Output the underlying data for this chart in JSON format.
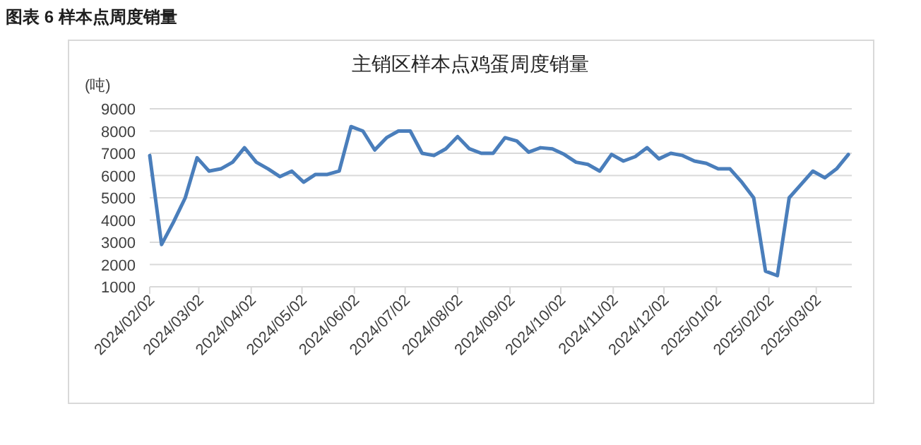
{
  "chart_data": {
    "type": "line",
    "title": "主销区样本点鸡蛋周度销量",
    "ylabel": "(吨)",
    "annotations": [
      "图表 6 样本点周度销量"
    ],
    "x": [
      "2024-02-02",
      "2024-02-09",
      "2024-02-16",
      "2024-02-23",
      "2024-03-01",
      "2024-03-08",
      "2024-03-15",
      "2024-03-22",
      "2024-03-29",
      "2024-04-05",
      "2024-04-12",
      "2024-04-19",
      "2024-04-26",
      "2024-05-03",
      "2024-05-10",
      "2024-05-17",
      "2024-05-24",
      "2024-05-31",
      "2024-06-07",
      "2024-06-14",
      "2024-06-21",
      "2024-06-28",
      "2024-07-05",
      "2024-07-12",
      "2024-07-19",
      "2024-07-26",
      "2024-08-02",
      "2024-08-09",
      "2024-08-16",
      "2024-08-23",
      "2024-08-30",
      "2024-09-06",
      "2024-09-13",
      "2024-09-20",
      "2024-09-27",
      "2024-10-04",
      "2024-10-11",
      "2024-10-18",
      "2024-10-25",
      "2024-11-01",
      "2024-11-08",
      "2024-11-15",
      "2024-11-22",
      "2024-11-29",
      "2024-12-06",
      "2024-12-13",
      "2024-12-20",
      "2024-12-27",
      "2025-01-03",
      "2025-01-10",
      "2025-01-17",
      "2025-01-24",
      "2025-01-31",
      "2025-02-07",
      "2025-02-14",
      "2025-02-21",
      "2025-02-28",
      "2025-03-07",
      "2025-03-14",
      "2025-03-21"
    ],
    "values": [
      6900,
      2900,
      3900,
      5000,
      6800,
      6200,
      6300,
      6600,
      7250,
      6600,
      6300,
      5950,
      6200,
      5700,
      6050,
      6050,
      6200,
      8200,
      8000,
      7150,
      7700,
      8000,
      8000,
      7000,
      6900,
      7200,
      7750,
      7200,
      7000,
      7000,
      7700,
      7550,
      7050,
      7250,
      7200,
      6950,
      6600,
      6500,
      6200,
      6950,
      6650,
      6850,
      7250,
      6750,
      7000,
      6900,
      6650,
      6550,
      6300,
      6300,
      5700,
      5000,
      1700,
      1500,
      5000,
      5600,
      6200,
      5900,
      6300,
      6950
    ],
    "color": "#4a7ebb",
    "marker": "none",
    "line_style": "solid",
    "grid": "y",
    "xlim": [
      "2024-02-02",
      "2025-03-23"
    ],
    "ylim": [
      1000,
      9000
    ],
    "yticks": [
      1000,
      2000,
      3000,
      4000,
      5000,
      6000,
      7000,
      8000,
      9000
    ],
    "xticks": [
      {
        "value": "2024-02-02",
        "label": "2024/02/02"
      },
      {
        "value": "2024-03-02",
        "label": "2024/03/02"
      },
      {
        "value": "2024-04-02",
        "label": "2024/04/02"
      },
      {
        "value": "2024-05-02",
        "label": "2024/05/02"
      },
      {
        "value": "2024-06-02",
        "label": "2024/06/02"
      },
      {
        "value": "2024-07-02",
        "label": "2024/07/02"
      },
      {
        "value": "2024-08-02",
        "label": "2024/08/02"
      },
      {
        "value": "2024-09-02",
        "label": "2024/09/02"
      },
      {
        "value": "2024-10-02",
        "label": "2024/10/02"
      },
      {
        "value": "2024-11-02",
        "label": "2024/11/02"
      },
      {
        "value": "2024-12-02",
        "label": "2024/12/02"
      },
      {
        "value": "2025-01-02",
        "label": "2025/01/02"
      },
      {
        "value": "2025-02-02",
        "label": "2025/02/02"
      },
      {
        "value": "2025-03-02",
        "label": "2025/03/02"
      }
    ]
  }
}
